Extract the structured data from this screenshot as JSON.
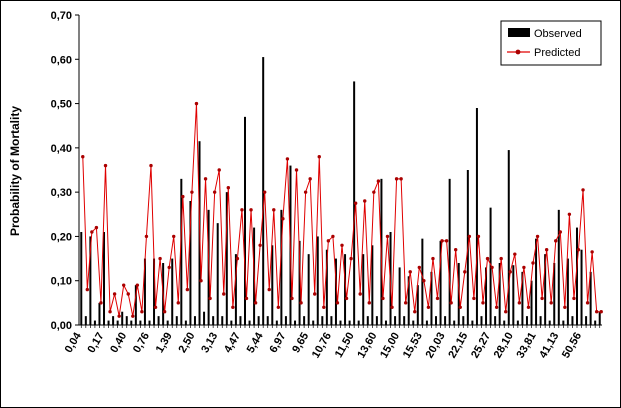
{
  "figure": {
    "legend": [
      {
        "label": "Observed",
        "color": "#000000",
        "type": "bar"
      },
      {
        "label": "Predicted",
        "color": "#e00000",
        "type": "line-marker"
      }
    ]
  },
  "chart_data": {
    "type": "bar",
    "title": "",
    "xlabel": "",
    "ylabel": "Probability of Mortality",
    "ylim": [
      0,
      0.7
    ],
    "grid": false,
    "legend_position": "top-right",
    "ytick_labels": [
      "0,00",
      "0,10",
      "0,20",
      "0,30",
      "0,40",
      "0,50",
      "0,60",
      "0,70"
    ],
    "xtick_labels": [
      "0,04",
      "0,17",
      "0,40",
      "0,76",
      "1,39",
      "2,50",
      "3,13",
      "4,47",
      "5,44",
      "6,97",
      "9,65",
      "10,76",
      "11,50",
      "13,60",
      "15,00",
      "15,53",
      "20,03",
      "22,15",
      "25,27",
      "28,10",
      "33,81",
      "41,13",
      "50,56"
    ],
    "label_every": 5,
    "colors": {
      "observed": "#000000",
      "predicted_line": "#e00000",
      "predicted_marker": "#aa0000"
    },
    "series": [
      {
        "name": "Observed",
        "type": "bar",
        "color": "#000000",
        "values": [
          0.21,
          0.02,
          0.2,
          0.01,
          0.05,
          0.21,
          0.01,
          0.02,
          0.01,
          0.03,
          0.02,
          0.01,
          0.09,
          0.01,
          0.15,
          0.01,
          0.15,
          0.02,
          0.14,
          0.01,
          0.15,
          0.02,
          0.33,
          0.01,
          0.28,
          0.02,
          0.415,
          0.03,
          0.26,
          0.02,
          0.23,
          0.02,
          0.3,
          0.01,
          0.16,
          0.02,
          0.47,
          0.01,
          0.22,
          0.02,
          0.605,
          0.02,
          0.18,
          0.01,
          0.26,
          0.02,
          0.36,
          0.01,
          0.19,
          0.02,
          0.16,
          0.01,
          0.2,
          0.02,
          0.17,
          0.02,
          0.15,
          0.01,
          0.16,
          0.01,
          0.55,
          0.01,
          0.16,
          0.02,
          0.18,
          0.02,
          0.33,
          0.01,
          0.21,
          0.02,
          0.13,
          0.02,
          0.11,
          0.01,
          0.09,
          0.195,
          0.01,
          0.12,
          0.02,
          0.19,
          0.02,
          0.33,
          0.01,
          0.14,
          0.02,
          0.35,
          0.01,
          0.49,
          0.02,
          0.13,
          0.265,
          0.02,
          0.14,
          0.01,
          0.395,
          0.135,
          0.01,
          0.12,
          0.02,
          0.1,
          0.195,
          0.02,
          0.16,
          0.01,
          0.14,
          0.26,
          0.01,
          0.15,
          0.02,
          0.22,
          0.17,
          0.02,
          0.12,
          0.01,
          0.03
        ]
      },
      {
        "name": "Predicted",
        "type": "line",
        "color": "#e00000",
        "marker": "circle",
        "values": [
          0.38,
          0.08,
          0.21,
          0.22,
          0.05,
          0.36,
          0.03,
          0.07,
          0.02,
          0.09,
          0.07,
          0.02,
          0.09,
          0.03,
          0.2,
          0.36,
          0.04,
          0.15,
          0.03,
          0.13,
          0.2,
          0.05,
          0.29,
          0.08,
          0.3,
          0.5,
          0.1,
          0.33,
          0.06,
          0.3,
          0.35,
          0.07,
          0.31,
          0.04,
          0.15,
          0.26,
          0.06,
          0.26,
          0.05,
          0.18,
          0.3,
          0.08,
          0.26,
          0.04,
          0.24,
          0.375,
          0.06,
          0.35,
          0.05,
          0.3,
          0.33,
          0.07,
          0.38,
          0.04,
          0.19,
          0.2,
          0.05,
          0.18,
          0.06,
          0.15,
          0.275,
          0.07,
          0.28,
          0.05,
          0.3,
          0.325,
          0.06,
          0.2,
          0.04,
          0.33,
          0.33,
          0.05,
          0.12,
          0.03,
          0.13,
          0.1,
          0.04,
          0.15,
          0.06,
          0.19,
          0.19,
          0.05,
          0.17,
          0.04,
          0.12,
          0.2,
          0.06,
          0.2,
          0.05,
          0.15,
          0.13,
          0.04,
          0.15,
          0.03,
          0.12,
          0.16,
          0.05,
          0.13,
          0.04,
          0.14,
          0.2,
          0.06,
          0.17,
          0.05,
          0.19,
          0.21,
          0.04,
          0.25,
          0.06,
          0.17,
          0.305,
          0.05,
          0.165,
          0.03,
          0.03
        ]
      }
    ]
  }
}
